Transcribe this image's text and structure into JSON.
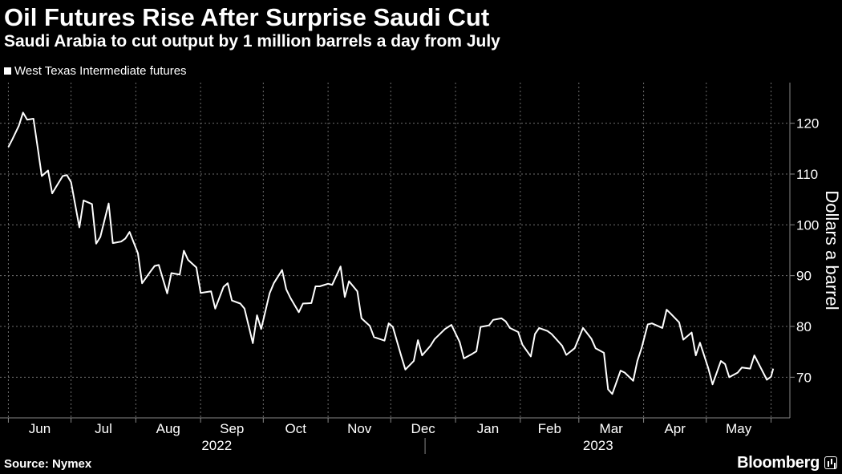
{
  "header": {
    "title": "Oil Futures Rise After Surprise Saudi Cut",
    "subtitle": "Saudi Arabia to cut output by 1 million barrels a day from July"
  },
  "footer": {
    "source": "Source: Nymex",
    "brand": "Bloomberg"
  },
  "colors": {
    "background": "#000000",
    "line": "#ffffff",
    "grid": "#6e6e6e"
  },
  "chart_data": {
    "type": "line",
    "ylabel": "Dollars a barrel",
    "ylim": [
      62,
      128
    ],
    "yticks": [
      70,
      80,
      90,
      100,
      110,
      120
    ],
    "grid": true,
    "legend": "top-left",
    "months": [
      "Jun",
      "Jul",
      "Aug",
      "Sep",
      "Oct",
      "Nov",
      "Dec",
      "Jan",
      "Feb",
      "Mar",
      "Apr",
      "May"
    ],
    "years": [
      "2022",
      "2023"
    ],
    "series": [
      {
        "name": "West Texas Intermediate futures",
        "x": [
          "2022-06-01",
          "2022-06-03",
          "2022-06-06",
          "2022-06-08",
          "2022-06-10",
          "2022-06-13",
          "2022-06-15",
          "2022-06-17",
          "2022-06-20",
          "2022-06-22",
          "2022-06-24",
          "2022-06-27",
          "2022-06-29",
          "2022-07-01",
          "2022-07-05",
          "2022-07-07",
          "2022-07-11",
          "2022-07-13",
          "2022-07-15",
          "2022-07-19",
          "2022-07-21",
          "2022-07-25",
          "2022-07-27",
          "2022-07-29",
          "2022-08-02",
          "2022-08-04",
          "2022-08-08",
          "2022-08-10",
          "2022-08-12",
          "2022-08-16",
          "2022-08-18",
          "2022-08-22",
          "2022-08-24",
          "2022-08-26",
          "2022-08-30",
          "2022-09-01",
          "2022-09-06",
          "2022-09-08",
          "2022-09-12",
          "2022-09-14",
          "2022-09-16",
          "2022-09-20",
          "2022-09-22",
          "2022-09-26",
          "2022-09-28",
          "2022-09-30",
          "2022-10-04",
          "2022-10-06",
          "2022-10-10",
          "2022-10-12",
          "2022-10-14",
          "2022-10-18",
          "2022-10-20",
          "2022-10-24",
          "2022-10-26",
          "2022-10-28",
          "2022-11-01",
          "2022-11-03",
          "2022-11-07",
          "2022-11-09",
          "2022-11-11",
          "2022-11-15",
          "2022-11-17",
          "2022-11-21",
          "2022-11-23",
          "2022-11-28",
          "2022-11-30",
          "2022-12-02",
          "2022-12-06",
          "2022-12-08",
          "2022-12-12",
          "2022-12-14",
          "2022-12-16",
          "2022-12-20",
          "2022-12-22",
          "2022-12-27",
          "2022-12-30",
          "2023-01-03",
          "2023-01-05",
          "2023-01-09",
          "2023-01-11",
          "2023-01-13",
          "2023-01-17",
          "2023-01-19",
          "2023-01-23",
          "2023-01-25",
          "2023-01-27",
          "2023-01-31",
          "2023-02-02",
          "2023-02-06",
          "2023-02-08",
          "2023-02-10",
          "2023-02-14",
          "2023-02-16",
          "2023-02-21",
          "2023-02-23",
          "2023-02-27",
          "2023-03-01",
          "2023-03-03",
          "2023-03-07",
          "2023-03-09",
          "2023-03-13",
          "2023-03-15",
          "2023-03-17",
          "2023-03-21",
          "2023-03-23",
          "2023-03-27",
          "2023-03-29",
          "2023-03-31",
          "2023-04-03",
          "2023-04-05",
          "2023-04-10",
          "2023-04-12",
          "2023-04-14",
          "2023-04-18",
          "2023-04-20",
          "2023-04-24",
          "2023-04-26",
          "2023-04-28",
          "2023-05-02",
          "2023-05-04",
          "2023-05-08",
          "2023-05-10",
          "2023-05-12",
          "2023-05-16",
          "2023-05-18",
          "2023-05-22",
          "2023-05-24",
          "2023-05-26",
          "2023-05-30",
          "2023-06-01",
          "2023-06-02"
        ],
        "y": [
          115.3,
          116.9,
          119.5,
          122.1,
          120.7,
          120.9,
          115.3,
          109.6,
          110.7,
          106.2,
          107.6,
          109.6,
          109.8,
          108.4,
          99.5,
          104.8,
          104.1,
          96.3,
          97.6,
          104.2,
          96.4,
          96.7,
          97.3,
          98.6,
          94.4,
          88.5,
          90.8,
          91.9,
          92.1,
          86.5,
          90.5,
          90.2,
          94.9,
          93.1,
          91.6,
          86.6,
          86.9,
          83.5,
          87.8,
          88.5,
          85.1,
          84.5,
          83.5,
          76.7,
          82.2,
          79.5,
          86.5,
          88.5,
          91.1,
          87.3,
          85.6,
          82.8,
          84.5,
          84.6,
          87.9,
          87.9,
          88.4,
          88.2,
          91.8,
          85.8,
          88.9,
          86.9,
          81.6,
          80.1,
          77.9,
          77.2,
          80.6,
          79.9,
          74.2,
          71.5,
          73.2,
          77.3,
          74.3,
          76.2,
          77.5,
          79.5,
          80.3,
          76.9,
          73.7,
          74.6,
          75.1,
          79.9,
          80.2,
          81.3,
          81.6,
          81.0,
          79.7,
          78.9,
          76.4,
          74.1,
          78.5,
          79.7,
          79.1,
          78.5,
          76.2,
          74.4,
          75.7,
          77.7,
          79.7,
          77.6,
          75.7,
          74.8,
          67.6,
          66.7,
          71.3,
          70.9,
          69.3,
          73.2,
          75.7,
          80.4,
          80.6,
          79.7,
          83.3,
          82.5,
          80.8,
          77.4,
          78.8,
          74.3,
          76.8,
          71.7,
          68.6,
          73.2,
          72.6,
          70.0,
          70.9,
          71.9,
          71.7,
          74.3,
          72.7,
          69.5,
          70.1,
          71.7
        ]
      }
    ]
  }
}
